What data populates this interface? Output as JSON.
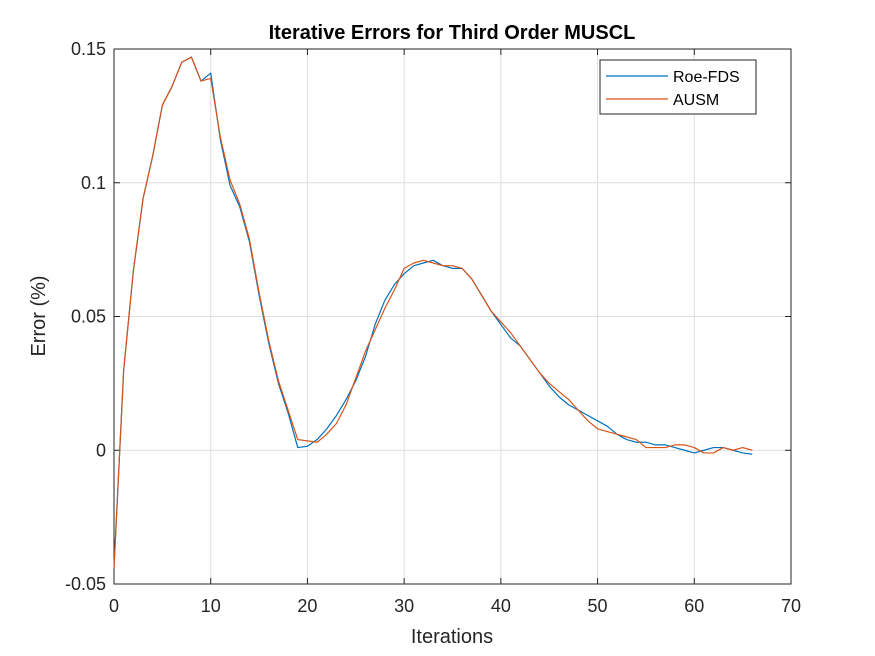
{
  "chart_data": {
    "type": "line",
    "title": "Iterative Errors for Third Order MUSCL",
    "xlabel": "Iterations",
    "ylabel": "Error (%)",
    "xlim": [
      0,
      70
    ],
    "ylim": [
      -0.05,
      0.15
    ],
    "xticks": [
      0,
      10,
      20,
      30,
      40,
      50,
      60,
      70
    ],
    "xtick_labels": [
      "0",
      "10",
      "20",
      "30",
      "40",
      "50",
      "60",
      "70"
    ],
    "yticks": [
      -0.05,
      0,
      0.05,
      0.1,
      0.15
    ],
    "ytick_labels": [
      "-0.05",
      "0",
      "0.05",
      "0.1",
      "0.15"
    ],
    "grid": true,
    "legend": "top-right",
    "series": [
      {
        "name": "Roe-FDS",
        "color": "#0072BD",
        "x": [
          0,
          1,
          2,
          3,
          4,
          5,
          6,
          7,
          8,
          9,
          10,
          11,
          12,
          13,
          14,
          15,
          16,
          17,
          18,
          19,
          20,
          21,
          22,
          23,
          24,
          25,
          26,
          27,
          28,
          29,
          30,
          31,
          32,
          33,
          34,
          35,
          36,
          37,
          38,
          39,
          40,
          41,
          42,
          43,
          44,
          45,
          46,
          47,
          48,
          49,
          50,
          51,
          52,
          53,
          54,
          55,
          56,
          57,
          58,
          59,
          60,
          61,
          62,
          63,
          64,
          65,
          66
        ],
        "values": [
          -0.044,
          0.03,
          0.067,
          0.094,
          0.11,
          0.129,
          0.136,
          0.145,
          0.147,
          0.138,
          0.141,
          0.116,
          0.099,
          0.091,
          0.078,
          0.058,
          0.04,
          0.025,
          0.014,
          0.001,
          0.0015,
          0.004,
          0.008,
          0.013,
          0.019,
          0.026,
          0.035,
          0.047,
          0.056,
          0.062,
          0.066,
          0.069,
          0.07,
          0.071,
          0.069,
          0.068,
          0.068,
          0.064,
          0.058,
          0.052,
          0.047,
          0.042,
          0.039,
          0.034,
          0.029,
          0.024,
          0.02,
          0.017,
          0.015,
          0.013,
          0.011,
          0.009,
          0.006,
          0.004,
          0.003,
          0.003,
          0.002,
          0.002,
          0.001,
          0.0,
          -0.001,
          0.0,
          0.001,
          0.001,
          0.0,
          -0.001,
          -0.0015
        ]
      },
      {
        "name": "AUSM",
        "color": "#D95319",
        "x": [
          0,
          1,
          2,
          3,
          4,
          5,
          6,
          7,
          8,
          9,
          10,
          11,
          12,
          13,
          14,
          15,
          16,
          17,
          18,
          19,
          20,
          21,
          22,
          23,
          24,
          25,
          26,
          27,
          28,
          29,
          30,
          31,
          32,
          33,
          34,
          35,
          36,
          37,
          38,
          39,
          40,
          41,
          42,
          43,
          44,
          45,
          46,
          47,
          48,
          49,
          50,
          51,
          52,
          53,
          54,
          55,
          56,
          57,
          58,
          59,
          60,
          61,
          62,
          63,
          64,
          65,
          66
        ],
        "values": [
          -0.044,
          0.03,
          0.067,
          0.094,
          0.11,
          0.129,
          0.136,
          0.145,
          0.147,
          0.138,
          0.139,
          0.117,
          0.101,
          0.092,
          0.079,
          0.059,
          0.041,
          0.026,
          0.015,
          0.004,
          0.0035,
          0.003,
          0.006,
          0.01,
          0.017,
          0.027,
          0.037,
          0.045,
          0.053,
          0.06,
          0.068,
          0.07,
          0.071,
          0.07,
          0.069,
          0.069,
          0.068,
          0.064,
          0.058,
          0.052,
          0.048,
          0.044,
          0.039,
          0.034,
          0.029,
          0.025,
          0.022,
          0.019,
          0.015,
          0.011,
          0.008,
          0.007,
          0.006,
          0.005,
          0.004,
          0.001,
          0.001,
          0.001,
          0.002,
          0.002,
          0.001,
          -0.001,
          -0.001,
          0.001,
          0.0,
          0.001,
          0.0
        ]
      }
    ]
  }
}
